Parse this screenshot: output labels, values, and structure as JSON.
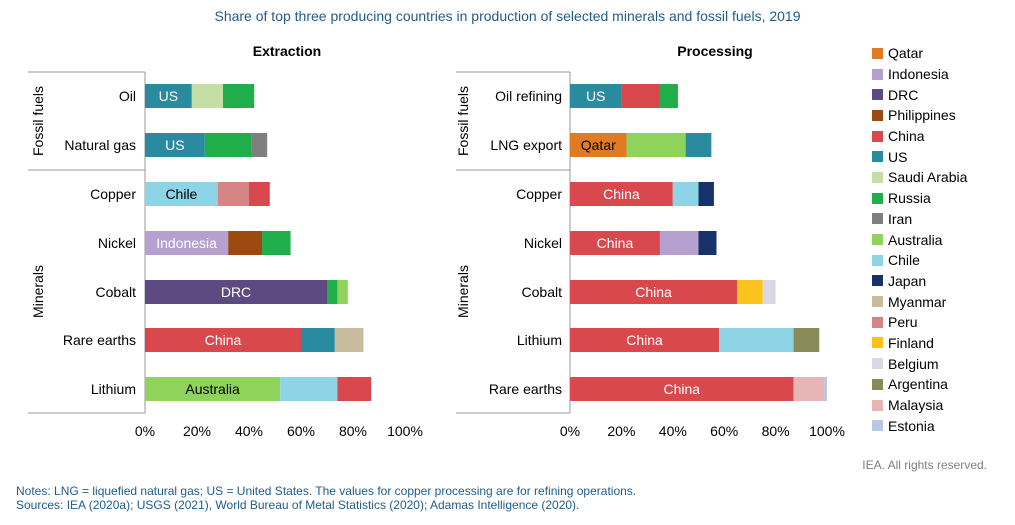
{
  "title": "Share of top three producing countries in production of selected minerals and fossil fuels, 2019",
  "credit": "IEA. All rights reserved.",
  "notes": "Notes: LNG = liquefied natural gas; US = United States. The values for copper processing are for refining operations.",
  "sources": "Sources: IEA (2020a); USGS (2021), World Bureau of Metal Statistics (2020); Adamas Intelligence (2020).",
  "colors": {
    "Qatar": "#e07b24",
    "Indonesia": "#b5a0cf",
    "DRC": "#5e4a82",
    "Philippines": "#9c4a0f",
    "China": "#d9484d",
    "US": "#2a8aa0",
    "Saudi Arabia": "#c5dea5",
    "Russia": "#1fae4a",
    "Iran": "#7f7f7f",
    "Australia": "#8fd35a",
    "Chile": "#8fd3e6",
    "Japan": "#17326b",
    "Myanmar": "#c7bd9c",
    "Peru": "#d68585",
    "Finland": "#fbc21c",
    "Belgium": "#dad8e4",
    "Argentina": "#8a8a58",
    "Malaysia": "#e8b5b6",
    "Estonia": "#b8c8e4"
  },
  "legend": [
    "Qatar",
    "Indonesia",
    "DRC",
    "Philippines",
    "China",
    "US",
    "Saudi Arabia",
    "Russia",
    "Iran",
    "Australia",
    "Chile",
    "Japan",
    "Myanmar",
    "Peru",
    "Finland",
    "Belgium",
    "Argentina",
    "Malaysia",
    "Estonia"
  ],
  "chart_data": [
    {
      "type": "bar",
      "orientation": "horizontal",
      "stacked": true,
      "title": "Extraction",
      "xlim": [
        0,
        100
      ],
      "xticks": [
        "0%",
        "20%",
        "40%",
        "60%",
        "80%",
        "100%"
      ],
      "groups": [
        {
          "label": "Fossil fuels",
          "categories": [
            "Oil",
            "Natural gas"
          ]
        },
        {
          "label": "Minerals",
          "categories": [
            "Copper",
            "Nickel",
            "Cobalt",
            "Rare earths",
            "Lithium"
          ]
        }
      ],
      "bars": [
        {
          "category": "Oil",
          "segments": [
            {
              "country": "US",
              "value": 18,
              "label": "US"
            },
            {
              "country": "Saudi Arabia",
              "value": 12
            },
            {
              "country": "Russia",
              "value": 12
            }
          ]
        },
        {
          "category": "Natural gas",
          "segments": [
            {
              "country": "US",
              "value": 23,
              "label": "US"
            },
            {
              "country": "Russia",
              "value": 18
            },
            {
              "country": "Iran",
              "value": 6
            }
          ]
        },
        {
          "category": "Copper",
          "segments": [
            {
              "country": "Chile",
              "value": 28,
              "label": "Chile"
            },
            {
              "country": "Peru",
              "value": 12
            },
            {
              "country": "China",
              "value": 8
            }
          ]
        },
        {
          "category": "Nickel",
          "segments": [
            {
              "country": "Indonesia",
              "value": 32,
              "label": "Indonesia"
            },
            {
              "country": "Philippines",
              "value": 13
            },
            {
              "country": "Russia",
              "value": 11
            }
          ]
        },
        {
          "category": "Cobalt",
          "segments": [
            {
              "country": "DRC",
              "value": 70,
              "label": "DRC"
            },
            {
              "country": "Russia",
              "value": 4
            },
            {
              "country": "Australia",
              "value": 4
            }
          ]
        },
        {
          "category": "Rare earths",
          "segments": [
            {
              "country": "China",
              "value": 60,
              "label": "China"
            },
            {
              "country": "US",
              "value": 13
            },
            {
              "country": "Myanmar",
              "value": 11
            }
          ]
        },
        {
          "category": "Lithium",
          "segments": [
            {
              "country": "Australia",
              "value": 52,
              "label": "Australia"
            },
            {
              "country": "Chile",
              "value": 22
            },
            {
              "country": "China",
              "value": 13
            }
          ]
        }
      ]
    },
    {
      "type": "bar",
      "orientation": "horizontal",
      "stacked": true,
      "title": "Processing",
      "xlim": [
        0,
        100
      ],
      "xticks": [
        "0%",
        "20%",
        "40%",
        "60%",
        "80%",
        "100%"
      ],
      "groups": [
        {
          "label": "Fossil fuels",
          "categories": [
            "Oil refining",
            "LNG export"
          ]
        },
        {
          "label": "Minerals",
          "categories": [
            "Copper",
            "Nickel",
            "Cobalt",
            "Lithium",
            "Rare earths"
          ]
        }
      ],
      "bars": [
        {
          "category": "Oil refining",
          "segments": [
            {
              "country": "US",
              "value": 20,
              "label": "US"
            },
            {
              "country": "China",
              "value": 15
            },
            {
              "country": "Russia",
              "value": 7
            }
          ]
        },
        {
          "category": "LNG export",
          "segments": [
            {
              "country": "Qatar",
              "value": 22,
              "label": "Qatar"
            },
            {
              "country": "Australia",
              "value": 23
            },
            {
              "country": "US",
              "value": 10
            }
          ]
        },
        {
          "category": "Copper",
          "segments": [
            {
              "country": "China",
              "value": 40,
              "label": "China"
            },
            {
              "country": "Chile",
              "value": 10
            },
            {
              "country": "Japan",
              "value": 6
            }
          ]
        },
        {
          "category": "Nickel",
          "segments": [
            {
              "country": "China",
              "value": 35,
              "label": "China"
            },
            {
              "country": "Indonesia",
              "value": 15
            },
            {
              "country": "Japan",
              "value": 7
            }
          ]
        },
        {
          "category": "Cobalt",
          "segments": [
            {
              "country": "China",
              "value": 65,
              "label": "China"
            },
            {
              "country": "Finland",
              "value": 10
            },
            {
              "country": "Belgium",
              "value": 5
            }
          ]
        },
        {
          "category": "Lithium",
          "segments": [
            {
              "country": "China",
              "value": 58,
              "label": "China"
            },
            {
              "country": "Chile",
              "value": 29
            },
            {
              "country": "Argentina",
              "value": 10
            }
          ]
        },
        {
          "category": "Rare earths",
          "segments": [
            {
              "country": "China",
              "value": 87,
              "label": "China"
            },
            {
              "country": "Malaysia",
              "value": 12
            },
            {
              "country": "Estonia",
              "value": 1
            }
          ]
        }
      ]
    }
  ]
}
